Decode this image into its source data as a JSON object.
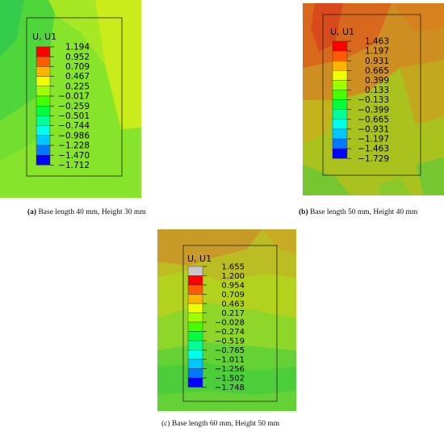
{
  "panels": [
    {
      "letter": "(a)",
      "caption": "Base length 40 mm, Height 30 mm",
      "legend_title": "U, U1",
      "levels": [
        "1.194",
        "0.952",
        "0.709",
        "0.467",
        "0.225",
        "−0.017",
        "−0.259",
        "−0.501",
        "−0.744",
        "−0.986",
        "−1.228",
        "−1.470",
        "−1.712"
      ],
      "colors": [
        "#ff0000",
        "#ff5a00",
        "#ffb400",
        "#f0ff00",
        "#9eff00",
        "#46ff00",
        "#00ff3c",
        "#00ff96",
        "#00ffeb",
        "#00c8ff",
        "#0078ff",
        "#0000ff"
      ]
    },
    {
      "letter": "(b)",
      "caption": "Base length 50 mm, Height 40 mm",
      "legend_title": "U, U1",
      "levels": [
        "1.463",
        "1.197",
        "0.931",
        "0.665",
        "0.399",
        "0.133",
        "−0.133",
        "−0.399",
        "−0.665",
        "−0.931",
        "−1.197",
        "−1.463",
        "−1.729"
      ],
      "colors": [
        "#ff0000",
        "#ff5a00",
        "#ffb400",
        "#f0ff00",
        "#9eff00",
        "#46ff00",
        "#00ff3c",
        "#00ff96",
        "#00ffeb",
        "#00c8ff",
        "#0078ff",
        "#0000ff"
      ]
    },
    {
      "letter": "(c)",
      "caption": "Base length 60 mm, Height 50 mm",
      "legend_title": "U, U1",
      "levels": [
        "1.655",
        "1.200",
        "0.954",
        "0.709",
        "0.463",
        "0.217",
        "−0.028",
        "−0.274",
        "−0.519",
        "−0.765",
        "−1.011",
        "−1.256",
        "−1.502",
        "−1.748"
      ],
      "colors": [
        "#c8c8c8",
        "#ff0000",
        "#ff5a00",
        "#ffb400",
        "#f0ff00",
        "#9eff00",
        "#46ff00",
        "#00ff3c",
        "#00ff96",
        "#00ffeb",
        "#00c8ff",
        "#0078ff",
        "#0000ff"
      ]
    }
  ]
}
